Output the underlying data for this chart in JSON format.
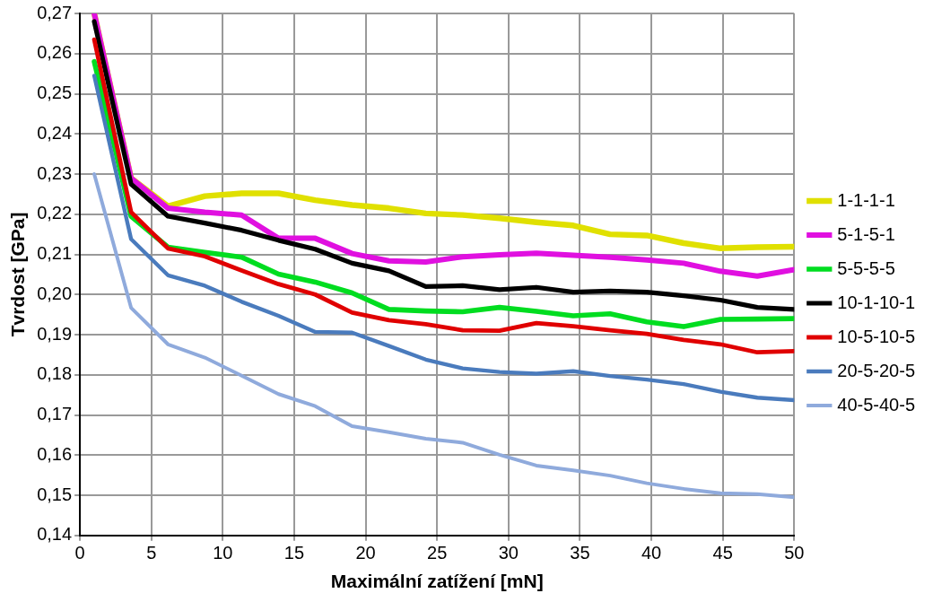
{
  "chart_data": {
    "type": "line",
    "xlabel": "Maximální zatížení [mN]",
    "ylabel": "Tvrdost [GPa]",
    "x": [
      1,
      3.58,
      6.16,
      8.74,
      11.32,
      13.9,
      16.47,
      19.05,
      21.63,
      24.21,
      26.79,
      29.37,
      31.95,
      34.53,
      37.11,
      39.68,
      42.26,
      44.84,
      47.42,
      50
    ],
    "series": [
      {
        "name": "1-1-1-1",
        "color": "#e0e000",
        "values": [
          0.27,
          0.229,
          0.222,
          0.2245,
          0.2252,
          0.2252,
          0.2235,
          0.2223,
          0.2215,
          0.2202,
          0.2198,
          0.219,
          0.218,
          0.2172,
          0.215,
          0.2147,
          0.2128,
          0.2115,
          0.2118,
          0.2119
        ]
      },
      {
        "name": "5-1-5-1",
        "color": "#e010e0",
        "values": [
          0.27,
          0.229,
          0.2215,
          0.2205,
          0.2198,
          0.214,
          0.214,
          0.2102,
          0.2084,
          0.2081,
          0.2094,
          0.2099,
          0.2103,
          0.2098,
          0.2093,
          0.2086,
          0.2078,
          0.2058,
          0.2046,
          0.2062
        ]
      },
      {
        "name": "5-5-5-5",
        "color": "#00dd20",
        "values": [
          0.258,
          0.2195,
          0.2118,
          0.2105,
          0.2093,
          0.2051,
          0.2031,
          0.2004,
          0.1963,
          0.1959,
          0.1957,
          0.1968,
          0.1958,
          0.1947,
          0.1952,
          0.1932,
          0.192,
          0.1938,
          0.1939,
          0.194
        ]
      },
      {
        "name": "10-1-10-1",
        "color": "#000000",
        "values": [
          0.268,
          0.2275,
          0.2195,
          0.2178,
          0.216,
          0.2135,
          0.2113,
          0.2078,
          0.2059,
          0.202,
          0.2022,
          0.2012,
          0.2018,
          0.2006,
          0.2009,
          0.2006,
          0.1997,
          0.1986,
          0.1968,
          0.1963
        ]
      },
      {
        "name": "10-5-10-5",
        "color": "#e00000",
        "values": [
          0.2635,
          0.2205,
          0.2115,
          0.2095,
          0.206,
          0.2026,
          0.2,
          0.1955,
          0.1936,
          0.1926,
          0.1911,
          0.191,
          0.1929,
          0.1921,
          0.1911,
          0.1902,
          0.1887,
          0.1876,
          0.1856,
          0.1859
        ]
      },
      {
        "name": "20-5-20-5",
        "color": "#4a7bbd",
        "values": [
          0.2545,
          0.2138,
          0.2048,
          0.2022,
          0.1982,
          0.1947,
          0.1907,
          0.1905,
          0.1872,
          0.1838,
          0.1816,
          0.1807,
          0.1803,
          0.1809,
          0.1797,
          0.1788,
          0.1777,
          0.1758,
          0.1743,
          0.1737
        ]
      },
      {
        "name": "40-5-40-5",
        "color": "#8faadc",
        "values": [
          0.23,
          0.1967,
          0.1876,
          0.1843,
          0.1798,
          0.1752,
          0.1722,
          0.1672,
          0.1657,
          0.1641,
          0.1631,
          0.1601,
          0.1574,
          0.1562,
          0.1549,
          0.153,
          0.1516,
          0.1505,
          0.1503,
          0.1495
        ]
      }
    ],
    "xlim": [
      0,
      50
    ],
    "xticks": [
      0,
      5,
      10,
      15,
      20,
      25,
      30,
      35,
      40,
      45,
      50
    ],
    "ylim": [
      0.14,
      0.27
    ],
    "yticks": [
      {
        "value": 0.14,
        "label": "0,14"
      },
      {
        "value": 0.15,
        "label": "0,15"
      },
      {
        "value": 0.16,
        "label": "0,16"
      },
      {
        "value": 0.17,
        "label": "0,17"
      },
      {
        "value": 0.18,
        "label": "0,18"
      },
      {
        "value": 0.19,
        "label": "0,19"
      },
      {
        "value": 0.2,
        "label": "0,20"
      },
      {
        "value": 0.21,
        "label": "0,21"
      },
      {
        "value": 0.22,
        "label": "0,22"
      },
      {
        "value": 0.23,
        "label": "0,23"
      },
      {
        "value": 0.24,
        "label": "0,24"
      },
      {
        "value": 0.25,
        "label": "0,25"
      },
      {
        "value": 0.26,
        "label": "0,26"
      },
      {
        "value": 0.27,
        "label": "0,27"
      }
    ],
    "grid": true,
    "legend": "right",
    "marker": "none",
    "line_style": "solid"
  }
}
